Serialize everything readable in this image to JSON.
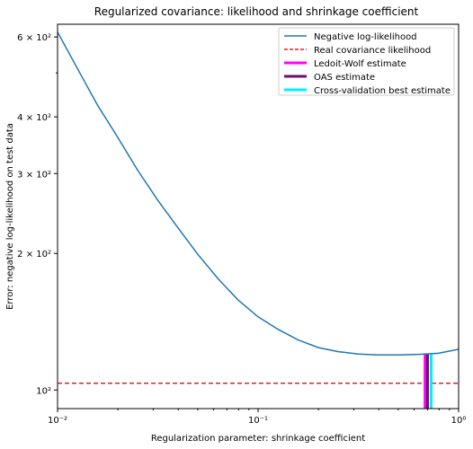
{
  "chart_data": {
    "type": "line",
    "title": "Regularized covariance: likelihood and shrinkage coefficient",
    "xlabel": "Regularization parameter: shrinkage coefficient",
    "ylabel": "Error: negative log-likelihood on test data",
    "xscale": "log",
    "yscale": "log",
    "xlim": [
      0.01,
      1.0
    ],
    "ylim": [
      91,
      640
    ],
    "x_ticks": [
      {
        "value": 0.01,
        "label": "10⁻²"
      },
      {
        "value": 0.1,
        "label": "10⁻¹"
      },
      {
        "value": 1.0,
        "label": "10⁰"
      }
    ],
    "y_ticks": [
      {
        "value": 100,
        "label": "10²"
      },
      {
        "value": 200,
        "label": "2 × 10²"
      },
      {
        "value": 300,
        "label": "3 × 10²"
      },
      {
        "value": 400,
        "label": "4 × 10²"
      },
      {
        "value": 600,
        "label": "6 × 10²"
      }
    ],
    "grid": false,
    "legend_position": "top-right",
    "series": [
      {
        "name": "Negative log-likelihood",
        "color": "#1f77b4",
        "style": "solid",
        "x": [
          0.01,
          0.0126,
          0.0158,
          0.02,
          0.0251,
          0.0316,
          0.0398,
          0.0501,
          0.0631,
          0.0794,
          0.1,
          0.126,
          0.158,
          0.2,
          0.251,
          0.316,
          0.398,
          0.501,
          0.631,
          0.794,
          1.0
        ],
        "y": [
          615,
          510,
          425,
          360,
          305,
          262,
          228,
          199,
          176,
          158,
          145,
          136,
          129,
          124,
          121.5,
          120,
          119.5,
          119.5,
          119.8,
          120.5,
          123
        ]
      },
      {
        "name": "Real covariance likelihood",
        "color": "#d62728",
        "style": "dashed",
        "y_value": 103.5
      }
    ],
    "vlines": [
      {
        "name": "Ledoit-Wolf estimate",
        "color": "#ff00ff",
        "x": 0.68,
        "y_top": 119.8
      },
      {
        "name": "OAS estimate",
        "color": "#6a0f6a",
        "x": 0.7,
        "y_top": 119.8
      },
      {
        "name": "Cross-validation best estimate",
        "color": "#00eeff",
        "x": 0.73,
        "y_top": 119.9
      }
    ]
  }
}
